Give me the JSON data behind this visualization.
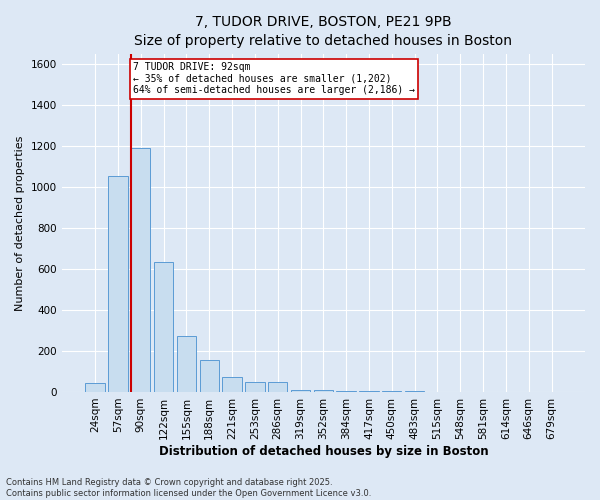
{
  "title": "7, TUDOR DRIVE, BOSTON, PE21 9PB",
  "subtitle": "Size of property relative to detached houses in Boston",
  "xlabel": "Distribution of detached houses by size in Boston",
  "ylabel": "Number of detached properties",
  "categories": [
    "24sqm",
    "57sqm",
    "90sqm",
    "122sqm",
    "155sqm",
    "188sqm",
    "221sqm",
    "253sqm",
    "286sqm",
    "319sqm",
    "352sqm",
    "384sqm",
    "417sqm",
    "450sqm",
    "483sqm",
    "515sqm",
    "548sqm",
    "581sqm",
    "614sqm",
    "646sqm",
    "679sqm"
  ],
  "values": [
    45,
    1055,
    1190,
    635,
    275,
    155,
    75,
    50,
    50,
    8,
    8,
    4,
    4,
    3,
    3,
    2,
    2,
    2,
    1,
    1,
    1
  ],
  "bar_color": "#c8ddef",
  "bar_edge_color": "#5b9bd5",
  "vline_color": "#cc0000",
  "vline_x_index": 2,
  "annotation_text": "7 TUDOR DRIVE: 92sqm\n← 35% of detached houses are smaller (1,202)\n64% of semi-detached houses are larger (2,186) →",
  "annotation_box_facecolor": "#ffffff",
  "annotation_box_edgecolor": "#cc0000",
  "ylim": [
    0,
    1650
  ],
  "yticks": [
    0,
    200,
    400,
    600,
    800,
    1000,
    1200,
    1400,
    1600
  ],
  "footer1": "Contains HM Land Registry data © Crown copyright and database right 2025.",
  "footer2": "Contains public sector information licensed under the Open Government Licence v3.0.",
  "bg_color": "#dde8f5",
  "plot_bg_color": "#dde8f5",
  "grid_color": "#ffffff",
  "title_fontsize": 10,
  "subtitle_fontsize": 9,
  "ylabel_fontsize": 8,
  "xlabel_fontsize": 8.5,
  "tick_fontsize": 7.5,
  "annotation_fontsize": 7,
  "footer_fontsize": 6
}
